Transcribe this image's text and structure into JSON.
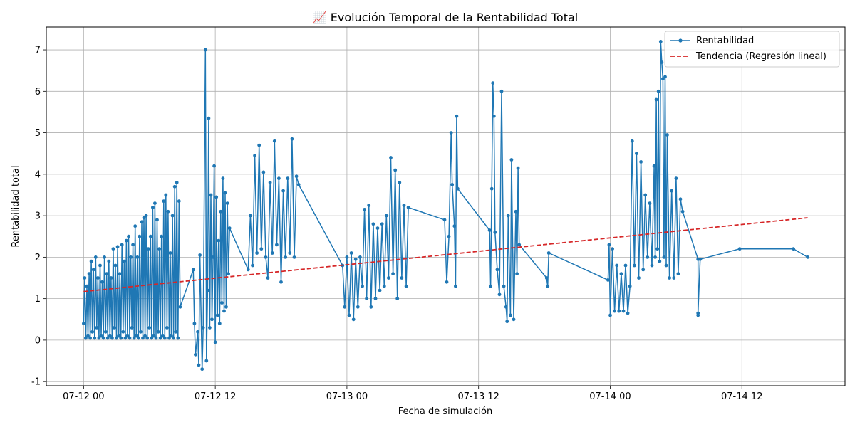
{
  "chart_data": {
    "type": "line",
    "title": "📈 Evolución Temporal de la Rentabilidad Total",
    "xlabel": "Fecha de simulación",
    "ylabel": "Rentabilidad total",
    "x_unit": "hours since 07-12 00",
    "x_tick_labels": [
      "07-12 00",
      "07-12 12",
      "07-13 00",
      "07-13 12",
      "07-14 00",
      "07-14 12"
    ],
    "x_ticks": [
      0,
      12,
      24,
      36,
      48,
      60
    ],
    "xlim": [
      -3.4,
      69.4
    ],
    "y_ticks": [
      -1,
      0,
      1,
      2,
      3,
      4,
      5,
      6,
      7
    ],
    "ylim": [
      -1.1,
      7.55
    ],
    "grid": true,
    "legend_position": "top-right",
    "series": [
      {
        "name": "Rentabilidad",
        "style": "solid-line-with-dots",
        "color": "#1f77b4",
        "points": [
          [
            0.0,
            0.4
          ],
          [
            0.1,
            1.5
          ],
          [
            0.2,
            0.05
          ],
          [
            0.3,
            1.3
          ],
          [
            0.4,
            0.1
          ],
          [
            0.5,
            1.6
          ],
          [
            0.6,
            0.05
          ],
          [
            0.7,
            1.9
          ],
          [
            0.8,
            0.2
          ],
          [
            0.9,
            1.7
          ],
          [
            1.0,
            0.05
          ],
          [
            1.1,
            2.0
          ],
          [
            1.2,
            0.3
          ],
          [
            1.3,
            1.5
          ],
          [
            1.4,
            0.05
          ],
          [
            1.5,
            1.8
          ],
          [
            1.6,
            0.1
          ],
          [
            1.7,
            1.4
          ],
          [
            1.8,
            0.05
          ],
          [
            1.9,
            2.0
          ],
          [
            2.0,
            0.2
          ],
          [
            2.1,
            1.6
          ],
          [
            2.2,
            0.05
          ],
          [
            2.3,
            1.9
          ],
          [
            2.4,
            0.1
          ],
          [
            2.5,
            1.5
          ],
          [
            2.6,
            0.05
          ],
          [
            2.7,
            2.2
          ],
          [
            2.8,
            0.3
          ],
          [
            2.9,
            1.8
          ],
          [
            3.0,
            0.05
          ],
          [
            3.1,
            2.25
          ],
          [
            3.2,
            0.1
          ],
          [
            3.3,
            1.6
          ],
          [
            3.4,
            0.05
          ],
          [
            3.5,
            2.3
          ],
          [
            3.6,
            0.2
          ],
          [
            3.7,
            1.9
          ],
          [
            3.8,
            0.05
          ],
          [
            3.9,
            2.4
          ],
          [
            4.0,
            0.1
          ],
          [
            4.1,
            2.5
          ],
          [
            4.2,
            0.05
          ],
          [
            4.3,
            2.0
          ],
          [
            4.4,
            0.3
          ],
          [
            4.5,
            2.3
          ],
          [
            4.6,
            0.05
          ],
          [
            4.7,
            2.75
          ],
          [
            4.8,
            0.1
          ],
          [
            4.9,
            2.0
          ],
          [
            5.0,
            0.05
          ],
          [
            5.1,
            2.5
          ],
          [
            5.2,
            0.2
          ],
          [
            5.3,
            2.85
          ],
          [
            5.4,
            0.05
          ],
          [
            5.5,
            2.95
          ],
          [
            5.6,
            0.1
          ],
          [
            5.7,
            3.0
          ],
          [
            5.8,
            0.05
          ],
          [
            5.9,
            2.2
          ],
          [
            6.0,
            0.3
          ],
          [
            6.1,
            2.5
          ],
          [
            6.2,
            0.05
          ],
          [
            6.3,
            3.2
          ],
          [
            6.4,
            0.1
          ],
          [
            6.5,
            3.3
          ],
          [
            6.6,
            0.05
          ],
          [
            6.7,
            2.9
          ],
          [
            6.8,
            0.2
          ],
          [
            6.9,
            2.2
          ],
          [
            7.0,
            0.05
          ],
          [
            7.1,
            2.5
          ],
          [
            7.2,
            0.1
          ],
          [
            7.3,
            3.35
          ],
          [
            7.4,
            0.05
          ],
          [
            7.5,
            3.5
          ],
          [
            7.6,
            0.3
          ],
          [
            7.7,
            3.1
          ],
          [
            7.8,
            0.05
          ],
          [
            7.9,
            2.1
          ],
          [
            8.0,
            0.1
          ],
          [
            8.1,
            3.0
          ],
          [
            8.2,
            0.05
          ],
          [
            8.3,
            3.7
          ],
          [
            8.4,
            0.2
          ],
          [
            8.5,
            3.8
          ],
          [
            8.6,
            0.05
          ],
          [
            8.7,
            3.35
          ],
          [
            8.8,
            0.8
          ],
          [
            10.0,
            1.7
          ],
          [
            10.1,
            0.4
          ],
          [
            10.2,
            -0.35
          ],
          [
            10.4,
            0.2
          ],
          [
            10.5,
            -0.6
          ],
          [
            10.6,
            2.05
          ],
          [
            10.8,
            -0.7
          ],
          [
            10.9,
            0.3
          ],
          [
            11.1,
            7.0
          ],
          [
            11.2,
            -0.5
          ],
          [
            11.3,
            1.2
          ],
          [
            11.4,
            5.35
          ],
          [
            11.5,
            0.3
          ],
          [
            11.6,
            3.5
          ],
          [
            11.7,
            0.5
          ],
          [
            11.8,
            2.0
          ],
          [
            11.9,
            4.2
          ],
          [
            12.0,
            -0.05
          ],
          [
            12.1,
            3.45
          ],
          [
            12.2,
            0.6
          ],
          [
            12.3,
            2.4
          ],
          [
            12.4,
            0.4
          ],
          [
            12.5,
            3.1
          ],
          [
            12.6,
            0.9
          ],
          [
            12.7,
            3.9
          ],
          [
            12.8,
            0.7
          ],
          [
            12.9,
            3.55
          ],
          [
            13.0,
            0.8
          ],
          [
            13.1,
            3.3
          ],
          [
            13.2,
            1.6
          ],
          [
            13.3,
            2.7
          ],
          [
            15.0,
            1.7
          ],
          [
            15.2,
            3.0
          ],
          [
            15.4,
            1.8
          ],
          [
            15.6,
            4.45
          ],
          [
            15.8,
            2.1
          ],
          [
            16.0,
            4.7
          ],
          [
            16.2,
            2.2
          ],
          [
            16.4,
            4.05
          ],
          [
            16.6,
            2.0
          ],
          [
            16.8,
            1.5
          ],
          [
            17.0,
            3.8
          ],
          [
            17.2,
            2.1
          ],
          [
            17.4,
            4.8
          ],
          [
            17.6,
            2.3
          ],
          [
            17.8,
            3.9
          ],
          [
            18.0,
            1.4
          ],
          [
            18.2,
            3.6
          ],
          [
            18.4,
            2.0
          ],
          [
            18.6,
            3.9
          ],
          [
            18.8,
            2.1
          ],
          [
            19.0,
            4.85
          ],
          [
            19.2,
            2.0
          ],
          [
            19.4,
            3.95
          ],
          [
            19.6,
            3.75
          ],
          [
            23.6,
            1.8
          ],
          [
            23.8,
            0.8
          ],
          [
            24.0,
            2.0
          ],
          [
            24.2,
            0.6
          ],
          [
            24.4,
            2.1
          ],
          [
            24.6,
            0.5
          ],
          [
            24.8,
            1.95
          ],
          [
            25.0,
            0.8
          ],
          [
            25.2,
            2.0
          ],
          [
            25.4,
            1.3
          ],
          [
            25.6,
            3.15
          ],
          [
            25.8,
            1.0
          ],
          [
            26.0,
            3.25
          ],
          [
            26.2,
            0.8
          ],
          [
            26.4,
            2.8
          ],
          [
            26.6,
            1.0
          ],
          [
            26.8,
            2.7
          ],
          [
            27.0,
            1.2
          ],
          [
            27.2,
            2.8
          ],
          [
            27.4,
            1.3
          ],
          [
            27.6,
            3.0
          ],
          [
            27.8,
            1.5
          ],
          [
            28.0,
            4.4
          ],
          [
            28.2,
            1.6
          ],
          [
            28.4,
            4.1
          ],
          [
            28.6,
            1.0
          ],
          [
            28.8,
            3.8
          ],
          [
            29.0,
            1.5
          ],
          [
            29.2,
            3.25
          ],
          [
            29.4,
            1.3
          ],
          [
            29.6,
            3.2
          ],
          [
            32.9,
            2.9
          ],
          [
            33.1,
            1.4
          ],
          [
            33.3,
            2.5
          ],
          [
            33.5,
            5.0
          ],
          [
            33.6,
            3.75
          ],
          [
            33.8,
            2.75
          ],
          [
            33.9,
            1.3
          ],
          [
            34.0,
            5.4
          ],
          [
            34.1,
            3.65
          ],
          [
            37.0,
            2.65
          ],
          [
            37.1,
            1.3
          ],
          [
            37.2,
            3.65
          ],
          [
            37.3,
            6.2
          ],
          [
            37.4,
            5.4
          ],
          [
            37.5,
            2.6
          ],
          [
            37.7,
            1.7
          ],
          [
            37.9,
            1.1
          ],
          [
            38.1,
            6.0
          ],
          [
            38.3,
            1.3
          ],
          [
            38.5,
            0.8
          ],
          [
            38.6,
            0.45
          ],
          [
            38.7,
            3.0
          ],
          [
            38.9,
            0.6
          ],
          [
            39.0,
            4.35
          ],
          [
            39.2,
            0.5
          ],
          [
            39.4,
            3.1
          ],
          [
            39.5,
            1.6
          ],
          [
            39.6,
            4.15
          ],
          [
            39.7,
            2.3
          ],
          [
            42.2,
            1.5
          ],
          [
            42.3,
            1.3
          ],
          [
            42.4,
            2.1
          ],
          [
            47.8,
            1.45
          ],
          [
            47.9,
            2.3
          ],
          [
            48.0,
            0.6
          ],
          [
            48.2,
            2.2
          ],
          [
            48.4,
            0.7
          ],
          [
            48.6,
            1.8
          ],
          [
            48.8,
            0.7
          ],
          [
            49.0,
            1.6
          ],
          [
            49.2,
            0.7
          ],
          [
            49.4,
            1.8
          ],
          [
            49.6,
            0.65
          ],
          [
            49.8,
            1.3
          ],
          [
            50.0,
            4.8
          ],
          [
            50.2,
            1.8
          ],
          [
            50.4,
            4.5
          ],
          [
            50.6,
            1.5
          ],
          [
            50.8,
            4.3
          ],
          [
            51.0,
            1.7
          ],
          [
            51.2,
            3.5
          ],
          [
            51.4,
            2.0
          ],
          [
            51.6,
            3.3
          ],
          [
            51.8,
            1.8
          ],
          [
            52.0,
            4.2
          ],
          [
            52.1,
            2.0
          ],
          [
            52.2,
            5.8
          ],
          [
            52.3,
            2.2
          ],
          [
            52.4,
            6.0
          ],
          [
            52.5,
            1.9
          ],
          [
            52.6,
            7.2
          ],
          [
            52.7,
            6.7
          ],
          [
            52.8,
            6.3
          ],
          [
            52.9,
            2.0
          ],
          [
            53.0,
            6.35
          ],
          [
            53.1,
            1.8
          ],
          [
            53.2,
            4.95
          ],
          [
            53.4,
            1.5
          ],
          [
            53.6,
            3.6
          ],
          [
            53.8,
            1.5
          ],
          [
            54.0,
            3.9
          ],
          [
            54.2,
            1.6
          ],
          [
            54.4,
            3.4
          ],
          [
            54.6,
            3.1
          ],
          [
            56.0,
            1.95
          ],
          [
            56.0,
            0.6
          ],
          [
            56.0,
            0.65
          ],
          [
            56.2,
            1.95
          ],
          [
            59.8,
            2.2
          ],
          [
            64.7,
            2.2
          ],
          [
            66.0,
            2.0
          ]
        ]
      },
      {
        "name": "Tendencia (Regresión lineal)",
        "style": "dashed-line",
        "color": "#d62728",
        "points": [
          [
            0.0,
            1.17
          ],
          [
            66.0,
            2.95
          ]
        ]
      }
    ]
  }
}
